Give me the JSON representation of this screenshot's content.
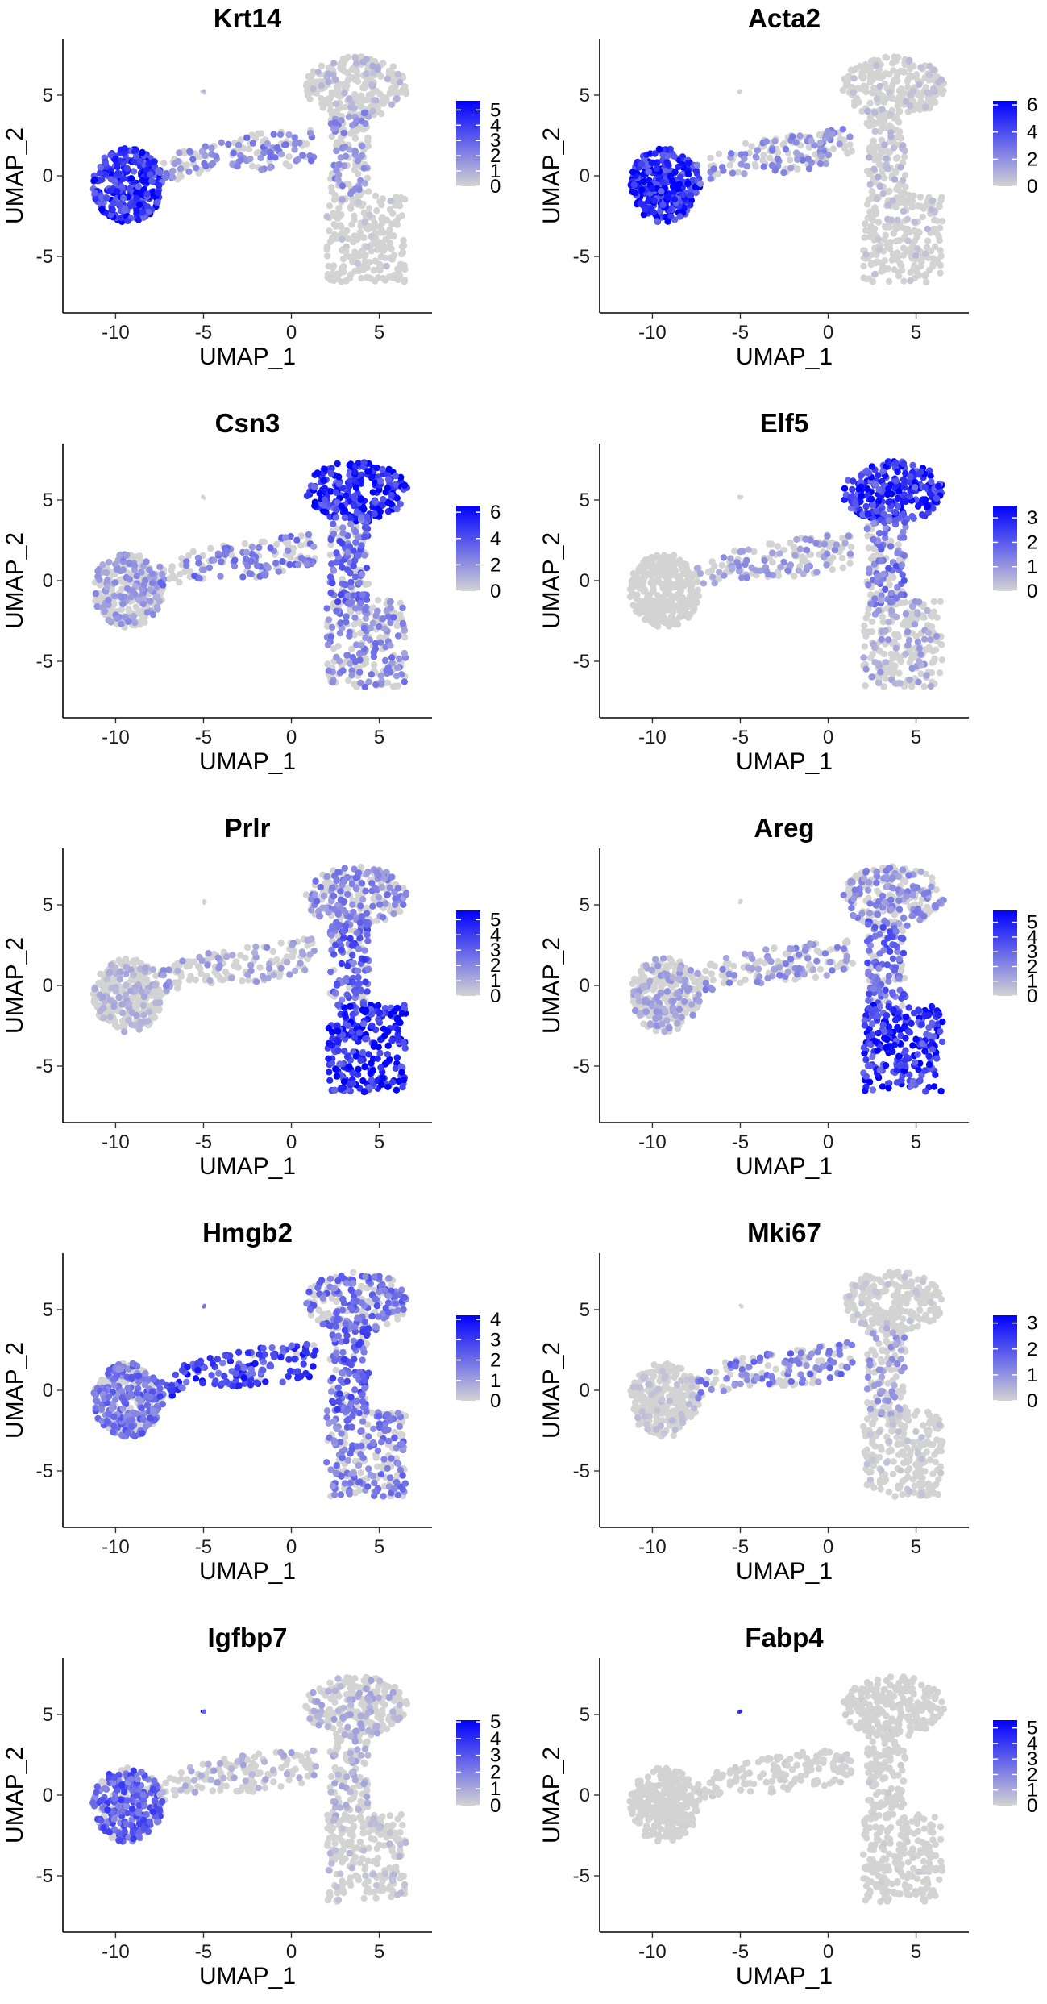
{
  "figure": {
    "point_colors": {
      "low": "#d3d3d3",
      "high": "#0000ff"
    }
  },
  "chart_data": [
    {
      "type": "scatter",
      "title": "Krt14",
      "xlabel": "UMAP_1",
      "ylabel": "UMAP_2",
      "xticks": [
        -10,
        -5,
        0,
        5
      ],
      "yticks": [
        -5,
        0,
        5
      ],
      "xlim": [
        -13,
        8
      ],
      "ylim": [
        -8.5,
        8.5
      ],
      "expression_max": 5.6,
      "legend_ticks": [
        0,
        1,
        2,
        3,
        4,
        5
      ],
      "legend_position": "right",
      "region_expression": {
        "basal": 0.85,
        "bridge": 0.4,
        "bud": 0.2,
        "luminal_top": 0.15,
        "stalk": 0.35,
        "luminal_bottom": 0.08
      }
    },
    {
      "type": "scatter",
      "title": "Acta2",
      "xlabel": "UMAP_1",
      "ylabel": "UMAP_2",
      "xticks": [
        -10,
        -5,
        0,
        5
      ],
      "yticks": [
        -5,
        0,
        5
      ],
      "xlim": [
        -13,
        8
      ],
      "ylim": [
        -8.5,
        8.5
      ],
      "expression_max": 6.3,
      "legend_ticks": [
        0,
        2,
        4,
        6
      ],
      "legend_position": "right",
      "region_expression": {
        "basal": 0.9,
        "bridge": 0.35,
        "bud": 0.08,
        "luminal_top": 0.1,
        "stalk": 0.15,
        "luminal_bottom": 0.1
      }
    },
    {
      "type": "scatter",
      "title": "Csn3",
      "xlabel": "UMAP_1",
      "ylabel": "UMAP_2",
      "xticks": [
        -10,
        -5,
        0,
        5
      ],
      "yticks": [
        -5,
        0,
        5
      ],
      "xlim": [
        -13,
        8
      ],
      "ylim": [
        -8.5,
        8.5
      ],
      "expression_max": 6.5,
      "legend_ticks": [
        0,
        2,
        4,
        6
      ],
      "legend_position": "right",
      "region_expression": {
        "basal": 0.3,
        "bridge": 0.45,
        "bud": 0.2,
        "luminal_top": 0.9,
        "stalk": 0.55,
        "luminal_bottom": 0.4
      }
    },
    {
      "type": "scatter",
      "title": "Elf5",
      "xlabel": "UMAP_1",
      "ylabel": "UMAP_2",
      "xticks": [
        -10,
        -5,
        0,
        5
      ],
      "yticks": [
        -5,
        0,
        5
      ],
      "xlim": [
        -13,
        8
      ],
      "ylim": [
        -8.5,
        8.5
      ],
      "expression_max": 3.5,
      "legend_ticks": [
        0,
        1,
        2,
        3
      ],
      "legend_position": "right",
      "region_expression": {
        "basal": 0.02,
        "bridge": 0.3,
        "bud": 0.02,
        "luminal_top": 0.85,
        "stalk": 0.5,
        "luminal_bottom": 0.25
      }
    },
    {
      "type": "scatter",
      "title": "Prlr",
      "xlabel": "UMAP_1",
      "ylabel": "UMAP_2",
      "xticks": [
        -10,
        -5,
        0,
        5
      ],
      "yticks": [
        -5,
        0,
        5
      ],
      "xlim": [
        -13,
        8
      ],
      "ylim": [
        -8.5,
        8.5
      ],
      "expression_max": 5.6,
      "legend_ticks": [
        0,
        1,
        2,
        3,
        4,
        5
      ],
      "legend_position": "right",
      "region_expression": {
        "basal": 0.18,
        "bridge": 0.3,
        "bud": 0.05,
        "luminal_top": 0.4,
        "stalk": 0.6,
        "luminal_bottom": 0.92
      }
    },
    {
      "type": "scatter",
      "title": "Areg",
      "xlabel": "UMAP_1",
      "ylabel": "UMAP_2",
      "xticks": [
        -10,
        -5,
        0,
        5
      ],
      "yticks": [
        -5,
        0,
        5
      ],
      "xlim": [
        -13,
        8
      ],
      "ylim": [
        -8.5,
        8.5
      ],
      "expression_max": 5.8,
      "legend_ticks": [
        0,
        1,
        2,
        3,
        4,
        5
      ],
      "legend_position": "right",
      "region_expression": {
        "basal": 0.25,
        "bridge": 0.35,
        "bud": 0.1,
        "luminal_top": 0.35,
        "stalk": 0.55,
        "luminal_bottom": 0.85
      }
    },
    {
      "type": "scatter",
      "title": "Hmgb2",
      "xlabel": "UMAP_1",
      "ylabel": "UMAP_2",
      "xticks": [
        -10,
        -5,
        0,
        5
      ],
      "yticks": [
        -5,
        0,
        5
      ],
      "xlim": [
        -13,
        8
      ],
      "ylim": [
        -8.5,
        8.5
      ],
      "expression_max": 4.2,
      "legend_ticks": [
        0,
        1,
        2,
        3,
        4
      ],
      "legend_position": "right",
      "region_expression": {
        "basal": 0.5,
        "bridge": 0.75,
        "bud": 0.6,
        "luminal_top": 0.5,
        "stalk": 0.6,
        "luminal_bottom": 0.45
      }
    },
    {
      "type": "scatter",
      "title": "Mki67",
      "xlabel": "UMAP_1",
      "ylabel": "UMAP_2",
      "xticks": [
        -10,
        -5,
        0,
        5
      ],
      "yticks": [
        -5,
        0,
        5
      ],
      "xlim": [
        -13,
        8
      ],
      "ylim": [
        -8.5,
        8.5
      ],
      "expression_max": 3.3,
      "legend_ticks": [
        0,
        1,
        2,
        3
      ],
      "legend_position": "right",
      "region_expression": {
        "basal": 0.1,
        "bridge": 0.45,
        "bud": 0.1,
        "luminal_top": 0.08,
        "stalk": 0.3,
        "luminal_bottom": 0.08
      }
    },
    {
      "type": "scatter",
      "title": "Igfbp7",
      "xlabel": "UMAP_1",
      "ylabel": "UMAP_2",
      "xticks": [
        -10,
        -5,
        0,
        5
      ],
      "yticks": [
        -5,
        0,
        5
      ],
      "xlim": [
        -13,
        8
      ],
      "ylim": [
        -8.5,
        8.5
      ],
      "expression_max": 5.1,
      "legend_ticks": [
        0,
        1,
        2,
        3,
        4,
        5
      ],
      "legend_position": "right",
      "region_expression": {
        "basal": 0.6,
        "bridge": 0.2,
        "bud": 0.8,
        "luminal_top": 0.2,
        "stalk": 0.2,
        "luminal_bottom": 0.12
      }
    },
    {
      "type": "scatter",
      "title": "Fabp4",
      "xlabel": "UMAP_1",
      "ylabel": "UMAP_2",
      "xticks": [
        -10,
        -5,
        0,
        5
      ],
      "yticks": [
        -5,
        0,
        5
      ],
      "xlim": [
        -13,
        8
      ],
      "ylim": [
        -8.5,
        8.5
      ],
      "expression_max": 5.5,
      "legend_ticks": [
        0,
        1,
        2,
        3,
        4,
        5
      ],
      "legend_position": "right",
      "region_expression": {
        "basal": 0.02,
        "bridge": 0.04,
        "bud": 0.9,
        "luminal_top": 0.04,
        "stalk": 0.05,
        "luminal_bottom": 0.03
      }
    }
  ]
}
